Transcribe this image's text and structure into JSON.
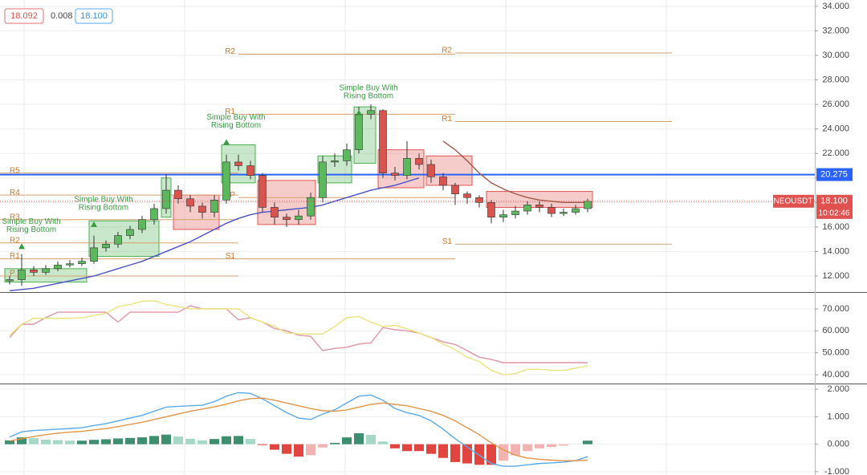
{
  "chart_data": [
    {
      "type": "candlestick",
      "header": [
        "18.092",
        "0.008",
        "18.100"
      ],
      "up_color": "#5cb85c",
      "down_color": "#d9534f",
      "open": [
        11.6,
        11.7,
        12.5,
        12.3,
        12.6,
        12.9,
        13.0,
        13.2,
        14.3,
        14.6,
        15.3,
        15.8,
        16.6,
        17.5,
        19.0,
        18.3,
        17.7,
        17.2,
        18.2,
        21.3,
        21.0,
        20.2,
        17.6,
        16.8,
        16.6,
        16.9,
        18.4,
        21.3,
        21.4,
        22.3,
        25.2,
        25.5,
        20.4,
        20.2,
        21.6,
        21.1,
        20.1,
        19.4,
        18.7,
        18.4,
        18.0,
        16.8,
        17.0,
        17.3,
        17.8,
        17.6,
        17.1,
        17.2,
        17.5
      ],
      "high": [
        12.0,
        13.8,
        12.8,
        12.9,
        13.2,
        13.3,
        13.5,
        15.3,
        14.9,
        15.6,
        16.1,
        16.9,
        17.9,
        20.3,
        19.4,
        18.6,
        18.0,
        18.6,
        21.9,
        21.9,
        21.4,
        20.4,
        18.0,
        17.1,
        17.4,
        18.8,
        21.8,
        22.0,
        22.8,
        25.8,
        26.0,
        25.6,
        20.9,
        23.0,
        22.0,
        21.5,
        20.4,
        19.6,
        18.9,
        18.6,
        18.2,
        17.4,
        17.7,
        18.1,
        18.1,
        17.9,
        17.5,
        17.8,
        18.3
      ],
      "low": [
        11.3,
        11.2,
        12.0,
        12.1,
        12.4,
        12.7,
        12.8,
        13.0,
        14.0,
        14.3,
        15.0,
        15.5,
        16.2,
        17.1,
        17.9,
        17.2,
        16.7,
        16.8,
        17.9,
        20.6,
        19.9,
        17.2,
        16.2,
        16.0,
        16.2,
        16.6,
        18.0,
        20.9,
        21.0,
        22.0,
        24.8,
        20.0,
        19.8,
        19.9,
        20.7,
        19.6,
        19.0,
        17.8,
        17.9,
        17.6,
        16.3,
        16.4,
        16.7,
        17.0,
        17.2,
        16.8,
        16.9,
        17.0,
        17.2
      ],
      "close": [
        11.7,
        12.5,
        12.3,
        12.6,
        12.9,
        13.0,
        13.2,
        14.3,
        14.6,
        15.3,
        15.8,
        16.6,
        17.5,
        19.0,
        18.3,
        17.7,
        17.2,
        18.2,
        21.3,
        21.0,
        20.2,
        17.6,
        16.8,
        16.6,
        16.9,
        18.4,
        21.3,
        21.4,
        22.3,
        25.2,
        25.5,
        20.4,
        20.2,
        21.6,
        21.1,
        20.1,
        19.4,
        18.7,
        18.4,
        18.0,
        16.8,
        17.0,
        17.3,
        17.8,
        17.6,
        17.1,
        17.2,
        17.5,
        18.1
      ],
      "series": [
        {
          "color": "#4a52c8",
          "values": [
            10.8,
            10.9,
            11.0,
            11.2,
            11.4,
            11.6,
            11.8,
            12.0,
            12.3,
            12.6,
            12.9,
            13.2,
            13.6,
            14.0,
            14.4,
            14.8,
            15.3,
            15.8,
            16.3,
            16.7,
            17.0,
            17.2,
            17.3,
            17.4,
            17.5,
            17.6,
            17.8,
            18.1,
            18.4,
            18.7,
            19.0,
            19.2,
            19.4,
            19.7,
            20.0,
            null,
            null,
            null,
            null,
            null,
            null,
            null,
            null,
            null,
            null,
            null,
            null,
            null,
            null
          ]
        },
        {
          "color": "#a0584a",
          "values": [
            null,
            null,
            null,
            null,
            null,
            null,
            null,
            null,
            null,
            null,
            null,
            null,
            null,
            null,
            null,
            null,
            null,
            null,
            null,
            null,
            null,
            null,
            null,
            null,
            null,
            null,
            null,
            null,
            null,
            null,
            null,
            null,
            null,
            null,
            null,
            null,
            23.0,
            22.3,
            21.4,
            20.4,
            19.6,
            19.1,
            18.7,
            18.4,
            18.2,
            18.1,
            18.0,
            18.0,
            18.0
          ]
        }
      ],
      "zones": [
        {
          "from": 0,
          "to": 6,
          "low": 11.5,
          "high": 12.6,
          "color": "#4caf50"
        },
        {
          "from": 7,
          "to": 12,
          "low": 13.6,
          "high": 16.5,
          "color": "#4caf50"
        },
        {
          "from": 13,
          "to": 13,
          "low": 16.8,
          "high": 20.0,
          "color": "#4caf50"
        },
        {
          "from": 14,
          "to": 17,
          "low": 15.8,
          "high": 18.6,
          "color": "#e05552"
        },
        {
          "from": 18,
          "to": 20,
          "low": 19.6,
          "high": 22.7,
          "color": "#4caf50"
        },
        {
          "from": 21,
          "to": 25,
          "low": 16.2,
          "high": 19.8,
          "color": "#e05552"
        },
        {
          "from": 26,
          "to": 28,
          "low": 19.6,
          "high": 21.8,
          "color": "#4caf50"
        },
        {
          "from": 29,
          "to": 30,
          "low": 21.2,
          "high": 25.8,
          "color": "#4caf50"
        },
        {
          "from": 31,
          "to": 34,
          "low": 19.2,
          "high": 22.3,
          "color": "#e05552"
        },
        {
          "from": 35,
          "to": 38,
          "low": 19.4,
          "high": 21.8,
          "color": "#e05552"
        },
        {
          "from": 40,
          "to": 48,
          "low": 17.6,
          "high": 18.9,
          "color": "#e05552"
        }
      ],
      "pivots": [
        {
          "from": -1,
          "to": 19,
          "levels": [
            {
              "label": "R5",
              "value": 20.4
            },
            {
              "label": "R4",
              "value": 18.6
            },
            {
              "label": "R3",
              "value": 16.6
            },
            {
              "label": "R2",
              "value": 14.7
            },
            {
              "label": "R1",
              "value": 13.4
            },
            {
              "label": "P",
              "value": 12.0
            }
          ]
        },
        {
          "from": 19,
          "to": 37,
          "levels": [
            {
              "label": "R2",
              "value": 30.1
            },
            {
              "label": "R1",
              "value": 25.2
            },
            {
              "label": "P",
              "value": 18.4
            },
            {
              "label": "S1",
              "value": 13.4
            }
          ]
        },
        {
          "from": 37,
          "to": 55,
          "levels": [
            {
              "label": "R2",
              "value": 30.2
            },
            {
              "label": "R1",
              "value": 24.6
            },
            {
              "label": "S1",
              "value": 14.6
            }
          ]
        }
      ],
      "annotations": [
        {
          "x": 1,
          "y": 14.2,
          "lines": [
            "Simple Buy With",
            "Rising Bottom"
          ]
        },
        {
          "x": 7,
          "y": 16.0,
          "lines": [
            "Simple Buy With",
            "Rising Bottom"
          ]
        },
        {
          "x": 18,
          "y": 22.7,
          "lines": [
            "Simple Buy With",
            "Rising Bottom"
          ]
        },
        {
          "x": 29,
          "y": 25.1,
          "lines": [
            "Simple Buy With",
            "Rising Bottom"
          ]
        }
      ],
      "hline": {
        "value": 20.275,
        "color": "#2962ff"
      },
      "last_price": {
        "value": 18.1,
        "label": "18.100"
      },
      "symbol": "NEOUSDT",
      "countdown": "10:02:46",
      "ylim": [
        10.69,
        34.52
      ],
      "yticks": [
        {
          "value": 12,
          "label": "12.000"
        },
        {
          "value": 14,
          "label": "14.000"
        },
        {
          "value": 16,
          "label": "16.000"
        },
        {
          "value": 18,
          "label": "18.000"
        },
        {
          "value": 20,
          "label": "20.000"
        },
        {
          "value": 22,
          "label": "22.000"
        },
        {
          "value": 24,
          "label": "24.000"
        },
        {
          "value": 26,
          "label": "26.000"
        },
        {
          "value": 28,
          "label": "28.000"
        },
        {
          "value": 30,
          "label": "30.000"
        },
        {
          "value": 32,
          "label": "32.000"
        },
        {
          "value": 34,
          "label": "34.000"
        }
      ],
      "grid": true
    },
    {
      "type": "line",
      "series": [
        {
          "color": "#df95a4",
          "values": [
            57,
            63,
            63,
            66,
            68.5,
            68.5,
            68.5,
            68.5,
            68.5,
            64,
            68.5,
            68.5,
            68.5,
            68.5,
            68.5,
            71.4,
            70,
            70,
            70,
            65,
            66,
            64,
            61,
            60,
            58,
            57.5,
            51,
            52,
            52.5,
            54,
            54.5,
            61.5,
            60.5,
            60,
            59,
            57,
            55,
            53.8,
            51,
            48,
            47,
            45.5,
            45.5,
            45.5,
            45.5,
            45.5,
            45.5,
            45.5,
            45.5
          ]
        },
        {
          "color": "#e8e47c",
          "values": [
            58,
            63,
            65.7,
            65.7,
            65.7,
            65.7,
            66,
            67,
            68,
            71,
            72,
            73.5,
            73.7,
            72,
            71,
            70,
            70,
            70,
            70,
            70,
            66,
            64,
            62,
            59,
            58.6,
            58.6,
            58.6,
            62,
            66,
            66.5,
            64,
            62,
            62.5,
            61,
            59,
            57,
            54,
            51.5,
            48,
            46,
            42,
            40,
            40.5,
            42.5,
            42.5,
            42,
            42,
            43,
            44
          ]
        }
      ],
      "ylim": [
        36.0,
        77.3
      ],
      "yticks": [
        {
          "value": 40,
          "label": "40.000"
        },
        {
          "value": 50,
          "label": "50.000"
        },
        {
          "value": 60,
          "label": "60.000"
        },
        {
          "value": 70,
          "label": "70.000"
        }
      ],
      "grid": true
    },
    {
      "type": "bar",
      "values": [
        0.14,
        0.25,
        0.22,
        0.17,
        0.15,
        0.13,
        0.13,
        0.16,
        0.18,
        0.21,
        0.23,
        0.25,
        0.3,
        0.35,
        0.28,
        0.2,
        0.14,
        0.19,
        0.29,
        0.3,
        0.19,
        -0.03,
        -0.2,
        -0.35,
        -0.45,
        -0.4,
        -0.12,
        0.05,
        0.25,
        0.4,
        0.34,
        0.1,
        -0.15,
        -0.25,
        -0.25,
        -0.35,
        -0.5,
        -0.65,
        -0.7,
        -0.75,
        -0.75,
        -0.6,
        -0.4,
        -0.25,
        -0.15,
        -0.1,
        -0.05,
        0,
        0.13
      ],
      "up_color": "#3d8f6f",
      "up_fade_color": "#a6d8c8",
      "down_color": "#e0463f",
      "down_fade_color": "#f4b3b3",
      "series": [
        {
          "color": "#5aa9e6",
          "values": [
            0.26,
            0.45,
            0.5,
            0.52,
            0.55,
            0.57,
            0.6,
            0.68,
            0.75,
            0.85,
            0.95,
            1.05,
            1.2,
            1.35,
            1.38,
            1.4,
            1.42,
            1.55,
            1.75,
            1.88,
            1.85,
            1.65,
            1.4,
            1.15,
            0.95,
            0.9,
            1.1,
            1.25,
            1.5,
            1.75,
            1.79,
            1.6,
            1.3,
            1.15,
            1.05,
            0.85,
            0.55,
            0.2,
            -0.1,
            -0.4,
            -0.7,
            -0.8,
            -0.8,
            -0.75,
            -0.7,
            -0.68,
            -0.65,
            -0.6,
            -0.45
          ]
        },
        {
          "color": "#e0964a",
          "values": [
            0.12,
            0.2,
            0.28,
            0.35,
            0.4,
            0.44,
            0.47,
            0.52,
            0.57,
            0.64,
            0.72,
            0.8,
            0.9,
            1.0,
            1.1,
            1.2,
            1.28,
            1.36,
            1.46,
            1.58,
            1.66,
            1.68,
            1.6,
            1.5,
            1.4,
            1.3,
            1.22,
            1.2,
            1.25,
            1.35,
            1.45,
            1.5,
            1.45,
            1.4,
            1.3,
            1.2,
            1.05,
            0.85,
            0.6,
            0.35,
            0.05,
            -0.2,
            -0.4,
            -0.5,
            -0.55,
            -0.58,
            -0.6,
            -0.6,
            -0.58
          ]
        }
      ],
      "ylim": [
        -1.12,
        2.18
      ],
      "yticks": [
        {
          "value": -1,
          "label": "-1.000"
        },
        {
          "value": 0,
          "label": "0.000"
        },
        {
          "value": 1,
          "label": "1.000"
        },
        {
          "value": 2,
          "label": "2.000"
        }
      ],
      "grid": true
    }
  ]
}
